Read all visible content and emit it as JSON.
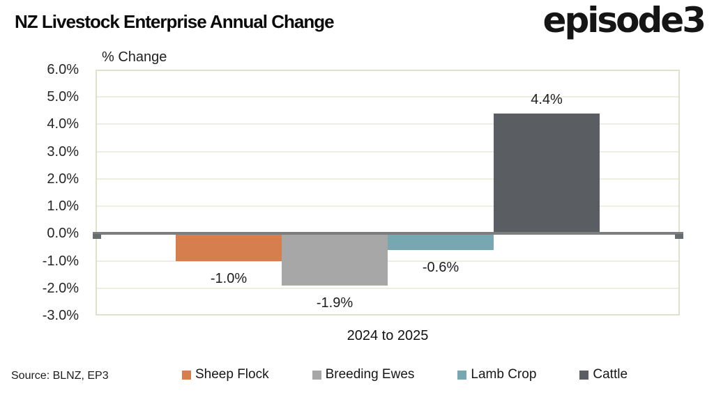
{
  "header": {
    "title": "NZ Livestock Enterprise Annual Change",
    "logo_text": "episode3"
  },
  "chart_data": {
    "type": "bar",
    "title": "NZ Livestock Enterprise Annual Change",
    "ylabel": "% Change",
    "xlabel": "",
    "categories": [
      "2024 to 2025"
    ],
    "series": [
      {
        "name": "Sheep Flock",
        "value": -1.0,
        "label": "-1.0%",
        "color": "#D77E4E"
      },
      {
        "name": "Breeding Ewes",
        "value": -1.9,
        "label": "-1.9%",
        "color": "#A7A7A7"
      },
      {
        "name": "Lamb Crop",
        "value": -0.6,
        "label": "-0.6%",
        "color": "#77A8B1"
      },
      {
        "name": "Cattle",
        "value": 4.4,
        "label": "4.4%",
        "color": "#5A5E62"
      }
    ],
    "ylim": [
      -3,
      6
    ],
    "yticks": [
      {
        "value": 6,
        "label": "6.0%"
      },
      {
        "value": 5,
        "label": "5.0%"
      },
      {
        "value": 4,
        "label": "4.0%"
      },
      {
        "value": 3,
        "label": "3.0%"
      },
      {
        "value": 2,
        "label": "2.0%"
      },
      {
        "value": 1,
        "label": "1.0%"
      },
      {
        "value": 0,
        "label": "0.0%"
      },
      {
        "value": -1,
        "label": "-1.0%"
      },
      {
        "value": -2,
        "label": "-2.0%"
      },
      {
        "value": -3,
        "label": "-3.0%"
      }
    ],
    "grid": true,
    "legend_position": "bottom",
    "axis_line_color": "#7b7d7e",
    "plot_border_color": "#dfe1cd"
  },
  "footer": {
    "source": "Source: BLNZ, EP3"
  }
}
